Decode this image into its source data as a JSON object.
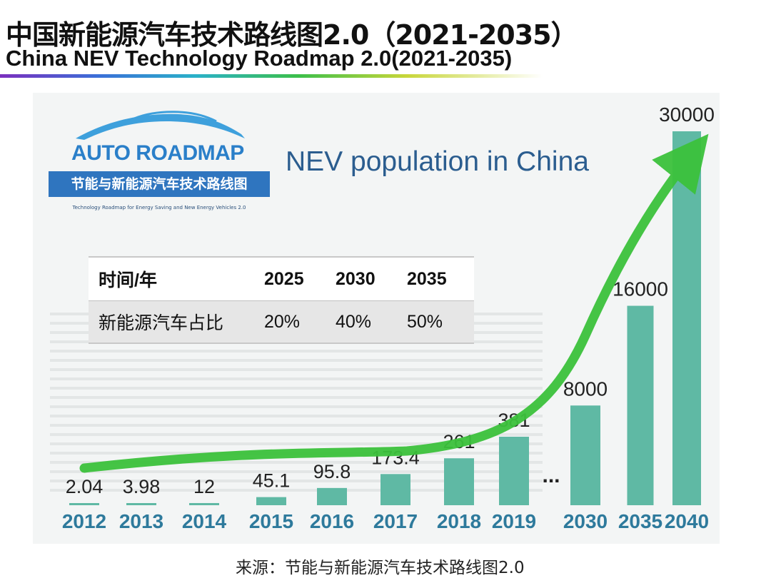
{
  "header": {
    "title_cn": "中国新能源汽车技术路线图2.0（2021-2035）",
    "title_en": "China NEV Technology Roadmap 2.0(2021-2035)"
  },
  "logo": {
    "name": "AUTO ROADMAP",
    "band_text": "节能与新能源汽车技术路线图",
    "subtitle": "Technology Roadmap for Energy Saving and New Energy Vehicles 2.0"
  },
  "share_table": {
    "headers": [
      "时间/年",
      "2025",
      "2030",
      "2035"
    ],
    "row": [
      "新能源汽车占比",
      "20%",
      "40%",
      "50%"
    ]
  },
  "chart_data": {
    "type": "bar",
    "title": "NEV population in China",
    "categories": [
      "2012",
      "2013",
      "2014",
      "2015",
      "2016",
      "2017",
      "2018",
      "2019",
      "2030",
      "2035",
      "2040"
    ],
    "values": [
      2.04,
      3.98,
      12,
      45.1,
      95.8,
      173.4,
      261,
      381,
      8000,
      16000,
      30000
    ],
    "labels": [
      "2.04",
      "3.98",
      "12",
      "45.1",
      "95.8",
      "173.4",
      "261",
      "381",
      "8000",
      "16000",
      "30000"
    ],
    "gap_marker": "...",
    "trend": "green arrow rising steeply toward 2040",
    "colors": {
      "bar": "#5fb9a4",
      "arrow": "#3cc23c",
      "year": "#2e7a9c"
    }
  },
  "source": "来源：节能与新能源汽车技术路线图2.0"
}
